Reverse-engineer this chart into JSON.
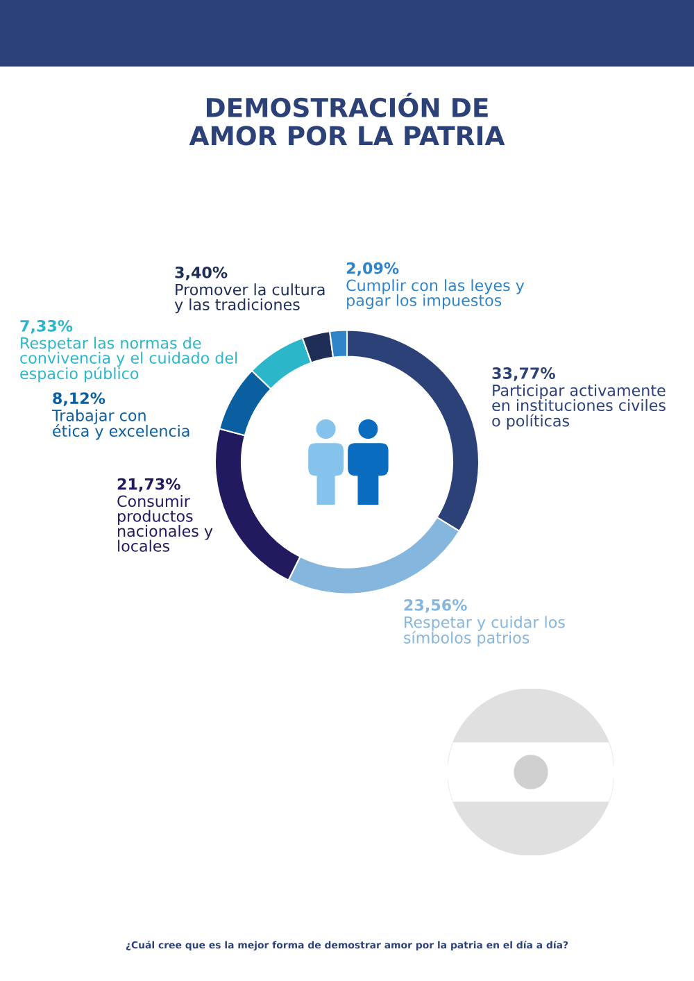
{
  "chart_data": {
    "type": "donut",
    "title": "DEMOSTRACIÓN DE\nAMOR POR LA PATRIA",
    "categories": [
      "Participar activamente\nen instituciones civiles\no políticas",
      "Respetar y cuidar los\nsímbolos patrios",
      "Consumir\nproductos\nnacionales y\nlocales",
      "Trabajar con\nética y excelencia",
      "Respetar las normas de\nconvivencia y el cuidado del\nespacio público",
      "Promover la cultura\ny las tradiciones",
      "Cumplir con las leyes y\npagar los impuestos"
    ],
    "values": [
      33.77,
      23.56,
      21.73,
      8.12,
      7.33,
      3.4,
      2.09
    ],
    "value_labels": [
      "33,77%",
      "23,56%",
      "21,73%",
      "8,12%",
      "7,33%",
      "3,40%",
      "2,09%"
    ],
    "colors": [
      "#2c4177",
      "#85b6de",
      "#221a5e",
      "#0a5fa0",
      "#2bb6c9",
      "#1e2e57",
      "#2f84c7"
    ],
    "annotations": [
      "¿Cuál cree que es la mejor forma de demostrar amor por la patria en el día a día?"
    ]
  }
}
